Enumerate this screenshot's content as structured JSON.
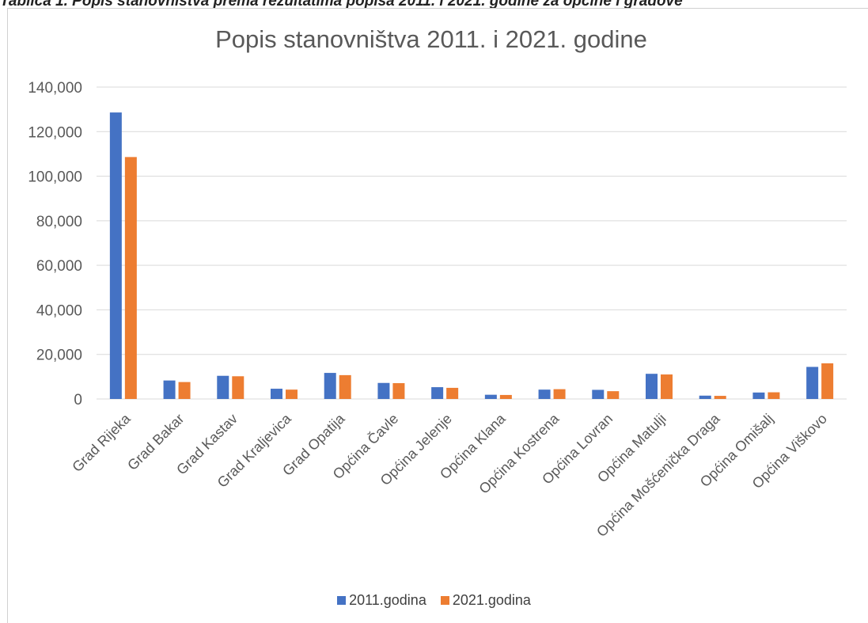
{
  "caption": "Tablica 1. Popis stanovništva prema rezultatima popisa 2011. i 2021. godine za općine i gradove",
  "colors": {
    "series_2011": "#4472C4",
    "series_2021": "#ED7D31",
    "grid": "#D9D9D9",
    "axis_text": "#595959"
  },
  "chart_data": {
    "type": "bar",
    "title": "Popis stanovništva 2011. i 2021. godine",
    "xlabel": "",
    "ylabel": "",
    "ylim": [
      0,
      140000
    ],
    "yticks": [
      0,
      20000,
      40000,
      60000,
      80000,
      100000,
      120000,
      140000
    ],
    "ytick_labels": [
      "0",
      "20,000",
      "40,000",
      "60,000",
      "80,000",
      "100,000",
      "120,000",
      "140,000"
    ],
    "grid": true,
    "legend_position": "bottom",
    "categories": [
      "Grad Rijeka",
      "Grad Bakar",
      "Grad Kastav",
      "Grad Kraljevica",
      "Grad Opatija",
      "Općina Čavle",
      "Općina Jelenje",
      "Općina Klana",
      "Općina Kostrena",
      "Općina Lovran",
      "Općina Matulji",
      "Općina Mošćenička Draga",
      "Općina Omišalj",
      "Općina Viškovo"
    ],
    "series": [
      {
        "name": "2011.godina",
        "values": [
          128600,
          8300,
          10400,
          4600,
          11700,
          7200,
          5300,
          1900,
          4200,
          4100,
          11300,
          1500,
          2900,
          14400
        ]
      },
      {
        "name": "2021.godina",
        "values": [
          108600,
          7600,
          10200,
          4200,
          10700,
          7100,
          5000,
          1800,
          4400,
          3500,
          11000,
          1400,
          3000,
          16000
        ]
      }
    ]
  }
}
